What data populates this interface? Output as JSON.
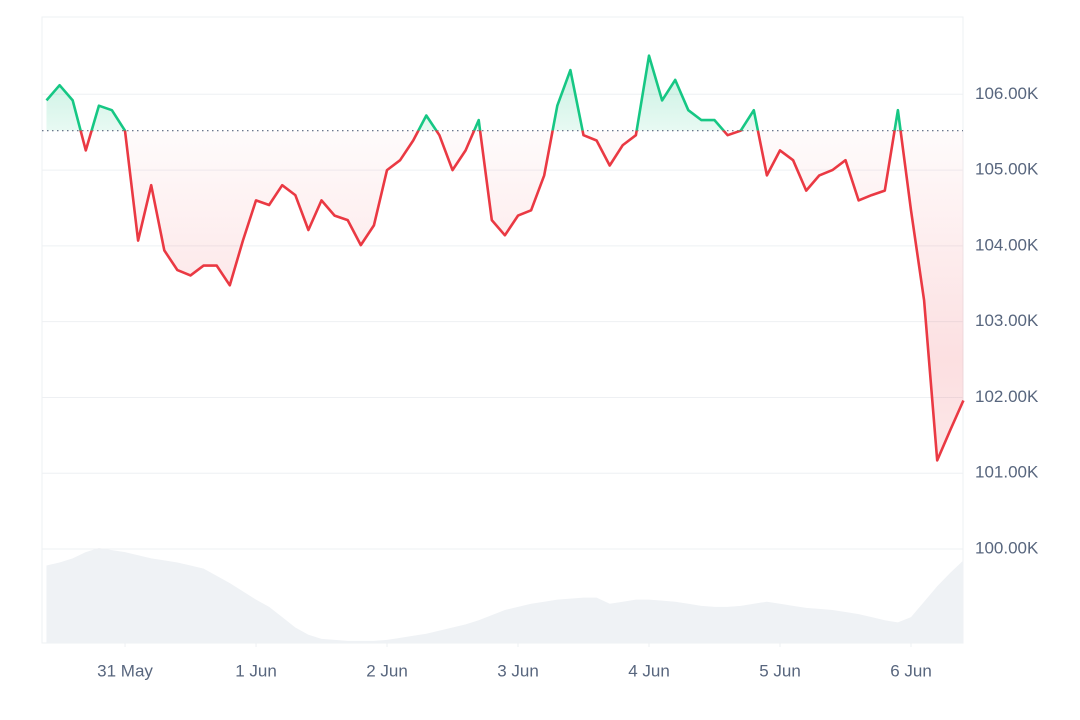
{
  "chart_data": {
    "type": "baseline-line",
    "x": [
      -0.6,
      -0.5,
      -0.4,
      -0.3,
      -0.2,
      -0.1,
      0,
      0.1,
      0.2,
      0.3,
      0.4,
      0.5,
      0.6,
      0.7,
      0.8,
      0.9,
      1,
      1.1,
      1.2,
      1.3,
      1.4,
      1.5,
      1.6,
      1.7,
      1.8,
      1.9,
      2,
      2.1,
      2.2,
      2.3,
      2.4,
      2.5,
      2.6,
      2.7,
      2.8,
      2.9,
      3,
      3.1,
      3.2,
      3.3,
      3.4,
      3.5,
      3.6,
      3.7,
      3.8,
      3.9,
      4,
      4.1,
      4.2,
      4.3,
      4.4,
      4.5,
      4.6,
      4.7,
      4.8,
      4.9,
      5,
      5.1,
      5.2,
      5.3,
      5.4,
      5.5,
      5.6,
      5.7,
      5.8,
      5.9,
      6,
      6.1,
      6.2,
      6.3,
      6.4
    ],
    "values": [
      105920,
      106120,
      105920,
      105260,
      105850,
      105790,
      105520,
      104070,
      104800,
      103940,
      103680,
      103610,
      103740,
      103740,
      103480,
      104070,
      104600,
      104540,
      104800,
      104670,
      104210,
      104600,
      104400,
      104340,
      104010,
      104270,
      105000,
      105130,
      105390,
      105720,
      105460,
      105000,
      105260,
      105660,
      104340,
      104140,
      104400,
      104470,
      104930,
      105850,
      106320,
      105460,
      105390,
      105060,
      105330,
      105460,
      106510,
      105920,
      106190,
      105790,
      105660,
      105660,
      105460,
      105520,
      105790,
      104930,
      105260,
      105130,
      104730,
      104930,
      105000,
      105130,
      104600,
      104670,
      104730,
      105790,
      104470,
      103280,
      101170,
      101570,
      101960
    ],
    "volume": [
      75,
      78,
      82,
      88,
      92,
      90,
      88,
      85,
      82,
      80,
      78,
      75,
      72,
      65,
      58,
      50,
      42,
      35,
      25,
      15,
      8,
      4,
      3,
      2,
      2,
      2,
      3,
      5,
      7,
      9,
      12,
      15,
      18,
      22,
      27,
      32,
      35,
      38,
      40,
      42,
      43,
      44,
      44,
      38,
      40,
      42,
      42,
      41,
      40,
      38,
      36,
      35,
      35,
      36,
      38,
      40,
      38,
      36,
      34,
      33,
      32,
      30,
      28,
      25,
      22,
      20,
      25,
      40,
      55,
      68,
      80
    ],
    "baseline": 105520,
    "up_color": "#16c784",
    "down_color": "#ea3943",
    "volume_color": "#eff2f5",
    "xlim": [
      -0.634,
      6.397
    ],
    "xticks": [
      {
        "value": 0,
        "label": "31 May"
      },
      {
        "value": 1,
        "label": "1 Jun"
      },
      {
        "value": 2,
        "label": "2 Jun"
      },
      {
        "value": 3,
        "label": "3 Jun"
      },
      {
        "value": 4,
        "label": "4 Jun"
      },
      {
        "value": 5,
        "label": "5 Jun"
      },
      {
        "value": 6,
        "label": "6 Jun"
      }
    ],
    "ylim": [
      98760,
      107020
    ],
    "yticks": [
      {
        "value": 100000,
        "label": "100.00K"
      },
      {
        "value": 101000,
        "label": "101.00K"
      },
      {
        "value": 102000,
        "label": "102.00K"
      },
      {
        "value": 103000,
        "label": "103.00K"
      },
      {
        "value": 104000,
        "label": "104.00K"
      },
      {
        "value": 105000,
        "label": "105.00K"
      },
      {
        "value": 106000,
        "label": "106.00K"
      }
    ],
    "grid": true
  }
}
